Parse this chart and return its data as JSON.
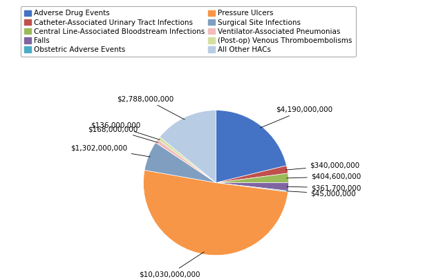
{
  "labels": [
    "Adverse Drug Events",
    "Catheter-Associated Urinary Tract Infections",
    "Central Line-Associated Bloodstream Infections",
    "Falls",
    "Obstetric Adverse Events",
    "Pressure Ulcers",
    "Surgical Site Infections",
    "Ventilator-Associated Pneumonias",
    "(Post-op) Venous Thromboembolisms",
    "All Other HACs"
  ],
  "legend_col1": [
    "Adverse Drug Events",
    "Central Line-Associated Bloodstream Infections",
    "Obstetric Adverse Events",
    "Surgical Site Infections",
    "(Post-op) Venous Thromboembolisms"
  ],
  "legend_col2": [
    "Catheter-Associated Urinary Tract Infections",
    "Falls",
    "Pressure Ulcers",
    "Ventilator-Associated Pneumonias",
    "All Other HACs"
  ],
  "values": [
    4190000000,
    340000000,
    404600000,
    361700000,
    45000000,
    10030000000,
    1302000000,
    168000000,
    136000000,
    2788000000
  ],
  "pie_colors": [
    "#4472C4",
    "#C0504D",
    "#9BBB59",
    "#8064A2",
    "#4BACC6",
    "#F79646",
    "#7F9EC0",
    "#F2BCBC",
    "#D4E0A0",
    "#B8CCE4"
  ],
  "label_strings": [
    "$4,190,000,000",
    "$340,000,000",
    "$404,600,000",
    "$361,700,000",
    "$45,000,000",
    "$10,030,000,000",
    "$1,302,000,000",
    "$168,000,000",
    "$136,000,000",
    "$2,788,000,000"
  ],
  "background": "#FFFFFF",
  "figsize": [
    6.25,
    4.04
  ],
  "dpi": 100,
  "legend_fontsize": 7.5,
  "label_fontsize": 7.5
}
